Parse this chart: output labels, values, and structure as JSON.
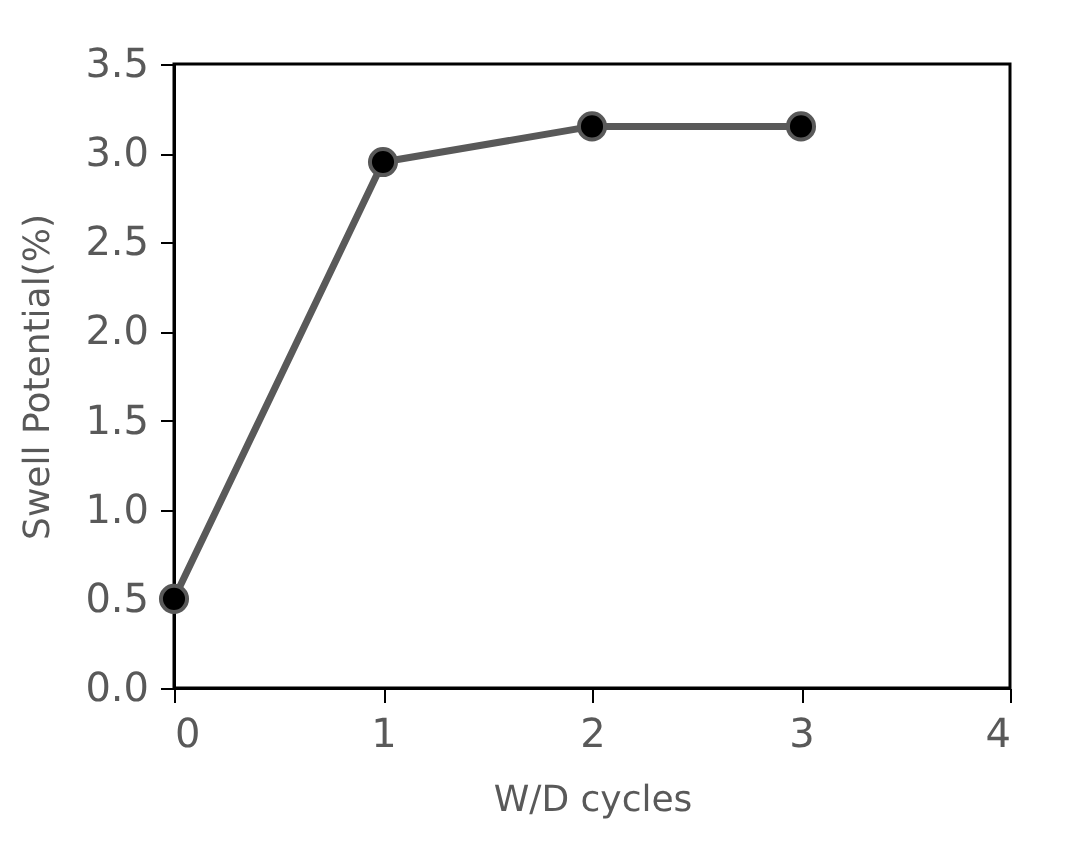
{
  "chart_data": {
    "type": "line",
    "xlabel": "W/D cycles",
    "ylabel": "Swell Potential(%)",
    "x": [
      0,
      1,
      2,
      3
    ],
    "series": [
      {
        "color": "#595959",
        "values": [
          0.5,
          2.95,
          3.15,
          3.15
        ]
      }
    ],
    "xlim": [
      0,
      4
    ],
    "xticks": [
      0,
      1,
      2,
      3,
      4
    ],
    "ylim": [
      0,
      3.5
    ],
    "yticks": [
      {
        "value": 0,
        "label": "0.0"
      },
      {
        "value": 0.5,
        "label": "0.5"
      },
      {
        "value": 1,
        "label": "1.0"
      },
      {
        "value": 1.5,
        "label": "1.5"
      },
      {
        "value": 2,
        "label": "2.0"
      },
      {
        "value": 2.5,
        "label": "2.5"
      },
      {
        "value": 3,
        "label": "3.0"
      },
      {
        "value": 3.5,
        "label": "3.5"
      }
    ],
    "grid": false,
    "marker": "circle",
    "line_style": "solid"
  }
}
